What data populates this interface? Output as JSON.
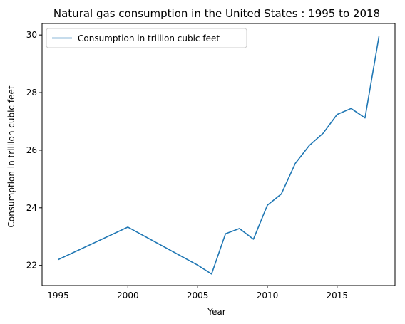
{
  "chart_data": {
    "type": "line",
    "title": "Natural gas consumption in the United States : 1995 to 2018",
    "xlabel": "Year",
    "ylabel": "Consumption in trillion cubic feet",
    "xlim": [
      1993.85,
      2019.15
    ],
    "ylim": [
      21.3,
      30.4
    ],
    "xticks": [
      1995,
      2000,
      2005,
      2010,
      2015
    ],
    "yticks": [
      22,
      24,
      26,
      28,
      30
    ],
    "grid": false,
    "legend_position": "top-left",
    "series": [
      {
        "name": "Consumption in trillion cubic feet",
        "color": "#1f77b4",
        "x": [
          1995,
          2000,
          2005,
          2006,
          2007,
          2008,
          2009,
          2010,
          2011,
          2012,
          2013,
          2014,
          2015,
          2016,
          2017,
          2018
        ],
        "y": [
          22.2,
          23.33,
          22.01,
          21.7,
          23.1,
          23.28,
          22.91,
          24.09,
          24.48,
          25.54,
          26.16,
          26.59,
          27.24,
          27.45,
          27.12,
          29.95
        ]
      }
    ]
  }
}
